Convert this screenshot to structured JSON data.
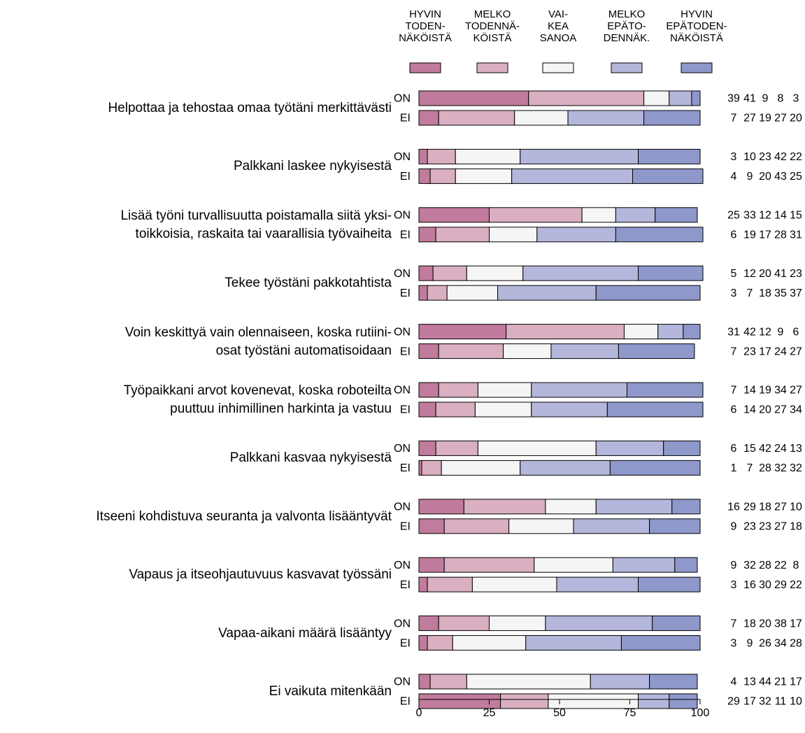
{
  "chart_data": {
    "type": "stacked-bar-horizontal",
    "categories": [
      "Helpottaa ja tehostaa omaa työtäni merkittävästi",
      "Palkkani laskee nykyisestä",
      "Lisää työni turvallisuutta poistamalla siitä yksi-\ntoikkoisia, raskaita tai vaarallisia työvaiheita",
      "Tekee työstäni pakkotahtista",
      "Voin keskittyä vain olennaiseen, koska rutiini-\nosat työstäni automatisoidaan",
      "Työpaikkani arvot kovenevat, koska roboteilta\npuuttuu inhimillinen harkinta ja vastuu",
      "Palkkani kasvaa nykyisestä",
      "Itseeni kohdistuva seuranta ja valvonta lisääntyvät",
      "Vapaus ja itseohjautuvuus kasvavat työssäni",
      "Vapaa-aikani määrä lisääntyy",
      "Ei vaikuta mitenkään"
    ],
    "groups": [
      "ON",
      "EI"
    ],
    "series": [
      {
        "name": "HYVIN\nTODEN-\nNÄKÖISTÄ",
        "color": "#c17b9c",
        "values": [
          [
            39,
            7
          ],
          [
            3,
            4
          ],
          [
            25,
            6
          ],
          [
            5,
            3
          ],
          [
            31,
            7
          ],
          [
            7,
            6
          ],
          [
            6,
            1
          ],
          [
            16,
            9
          ],
          [
            9,
            3
          ],
          [
            7,
            3
          ],
          [
            4,
            29
          ]
        ]
      },
      {
        "name": "MELKO\nTODENNÄ-\nKÖISTÄ",
        "color": "#d9afc1",
        "values": [
          [
            41,
            27
          ],
          [
            10,
            9
          ],
          [
            33,
            19
          ],
          [
            12,
            7
          ],
          [
            42,
            23
          ],
          [
            14,
            14
          ],
          [
            15,
            7
          ],
          [
            29,
            23
          ],
          [
            32,
            16
          ],
          [
            18,
            9
          ],
          [
            13,
            17
          ]
        ]
      },
      {
        "name": "VAI-\nKEA\nSANOA",
        "color": "#f5f5f5",
        "values": [
          [
            9,
            19
          ],
          [
            23,
            20
          ],
          [
            12,
            17
          ],
          [
            20,
            18
          ],
          [
            12,
            17
          ],
          [
            19,
            20
          ],
          [
            42,
            28
          ],
          [
            18,
            23
          ],
          [
            28,
            30
          ],
          [
            20,
            26
          ],
          [
            44,
            32
          ]
        ]
      },
      {
        "name": "MELKO\nEPÄTO-\nDENNÄK.",
        "color": "#b4b7db",
        "values": [
          [
            8,
            27
          ],
          [
            42,
            43
          ],
          [
            14,
            28
          ],
          [
            41,
            35
          ],
          [
            9,
            24
          ],
          [
            34,
            27
          ],
          [
            24,
            32
          ],
          [
            27,
            27
          ],
          [
            22,
            29
          ],
          [
            38,
            34
          ],
          [
            21,
            11
          ]
        ]
      },
      {
        "name": "HYVIN\nEPÄTODEN-\nNÄKÖISTÄ",
        "color": "#8f98cb",
        "values": [
          [
            3,
            20
          ],
          [
            22,
            25
          ],
          [
            15,
            31
          ],
          [
            23,
            37
          ],
          [
            6,
            27
          ],
          [
            27,
            34
          ],
          [
            13,
            32
          ],
          [
            10,
            18
          ],
          [
            8,
            22
          ],
          [
            17,
            28
          ],
          [
            17,
            10
          ]
        ]
      }
    ],
    "xlim": [
      0,
      100
    ],
    "xticks": [
      0,
      25,
      50,
      75,
      100
    ]
  }
}
